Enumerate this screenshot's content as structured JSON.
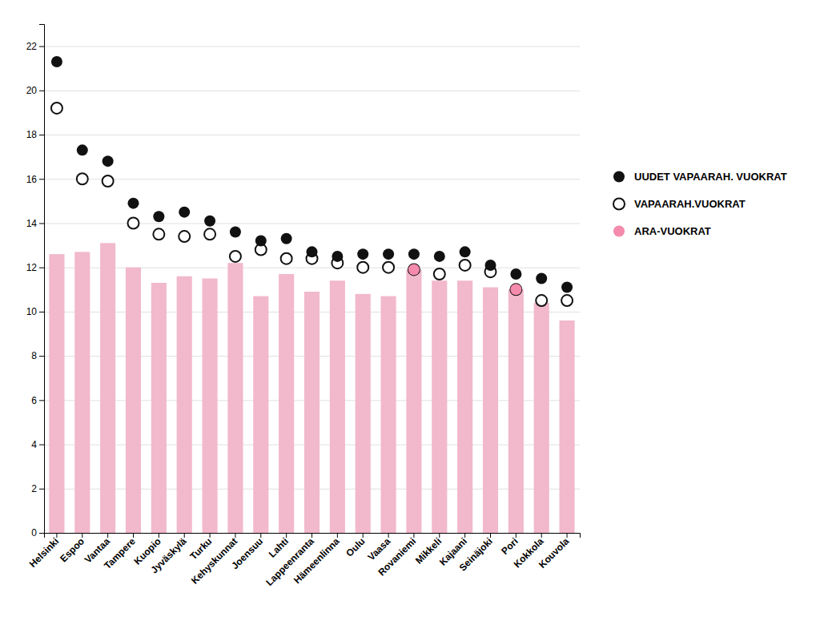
{
  "chart_data": {
    "type": "bar",
    "categories": [
      "Helsinki",
      "Espoo",
      "Vantaa",
      "Tampere",
      "Kuopio",
      "Jyväskylä",
      "Turku",
      "Kehyskunnat",
      "Joensuu",
      "Lahti",
      "Lappeenranta",
      "Hämeenlinna",
      "Oulu",
      "Vaasa",
      "Rovaniemi",
      "Mikkeli",
      "Kajaani",
      "Seinäjoki",
      "Pori",
      "Kokkola",
      "Kouvola"
    ],
    "series": [
      {
        "type": "bar",
        "color": "#f2b8cc",
        "values": [
          12.6,
          12.7,
          13.1,
          12.0,
          11.3,
          11.6,
          11.5,
          12.2,
          10.7,
          11.7,
          10.9,
          11.4,
          10.8,
          10.7,
          11.9,
          11.4,
          11.4,
          11.1,
          11.0,
          10.4,
          9.6
        ]
      },
      {
        "name": "UUDET VAPAARAH. VUOKRAT",
        "type": "scatter",
        "marker": "circle",
        "color": "#111111",
        "values": [
          21.3,
          17.3,
          16.8,
          14.9,
          14.3,
          14.5,
          14.1,
          13.6,
          13.2,
          13.3,
          12.7,
          12.5,
          12.6,
          12.6,
          12.6,
          12.5,
          12.7,
          12.1,
          11.7,
          11.5,
          11.1
        ]
      },
      {
        "name": "VAPAARAH.VUOKRAT",
        "type": "scatter",
        "marker": "open-circle",
        "color": "#111111",
        "values": [
          19.2,
          16.0,
          15.9,
          14.0,
          13.5,
          13.4,
          13.5,
          12.5,
          12.8,
          12.4,
          12.4,
          12.2,
          12.0,
          12.0,
          11.9,
          11.7,
          12.1,
          11.8,
          11.0,
          10.5,
          10.5
        ]
      },
      {
        "name": "ARA-VUOKRAT",
        "type": "scatter",
        "marker": "circle",
        "color": "#f48aac",
        "values": [
          null,
          null,
          null,
          null,
          null,
          null,
          null,
          null,
          null,
          null,
          null,
          null,
          null,
          null,
          11.9,
          null,
          null,
          null,
          11.0,
          null,
          null
        ]
      }
    ],
    "ylim": [
      0,
      23
    ],
    "yticks": [
      0,
      2,
      4,
      6,
      8,
      10,
      12,
      14,
      16,
      18,
      20,
      22
    ],
    "grid": true,
    "legend": "right"
  }
}
